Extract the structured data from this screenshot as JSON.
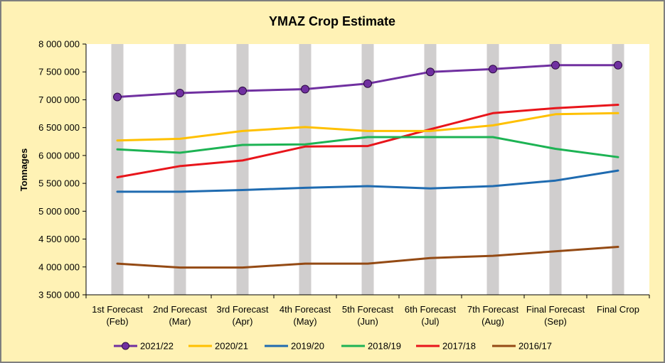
{
  "chart_data": {
    "type": "line",
    "title": "YMAZ Crop Estimate",
    "ylabel": "Tonnages",
    "ylim": [
      3500000,
      8000000
    ],
    "yticks": [
      3500000,
      4000000,
      4500000,
      5000000,
      5500000,
      6000000,
      6500000,
      7000000,
      7500000,
      8000000
    ],
    "ytick_labels": [
      "3 500 000",
      "4 000 000",
      "4 500 000",
      "5 000 000",
      "5 500 000",
      "6 000 000",
      "6 500 000",
      "7 000 000",
      "7 500 000",
      "8 000 000"
    ],
    "categories": [
      [
        "1st Forecast",
        "(Feb)"
      ],
      [
        "2nd Forecast",
        "(Mar)"
      ],
      [
        "3rd Forecast",
        "(Apr)"
      ],
      [
        "4th Forecast",
        "(May)"
      ],
      [
        "5th Forecast",
        "(Jun)"
      ],
      [
        "6th Forecast",
        "(Jul)"
      ],
      [
        "7th Forecast",
        "(Aug)"
      ],
      [
        "Final Forecast",
        "(Sep)"
      ],
      [
        "Final Crop",
        ""
      ]
    ],
    "grid": false,
    "legend_position": "bottom",
    "series": [
      {
        "name": "2021/22",
        "color": "#7030A0",
        "marker": true,
        "values": [
          7050000,
          7120000,
          7160000,
          7190000,
          7290000,
          7500000,
          7550000,
          7620000,
          7620000
        ]
      },
      {
        "name": "2020/21",
        "color": "#FFC000",
        "marker": false,
        "values": [
          6270000,
          6300000,
          6440000,
          6510000,
          6440000,
          6440000,
          6540000,
          6740000,
          6760000
        ]
      },
      {
        "name": "2019/20",
        "color": "#1F6BB0",
        "marker": false,
        "values": [
          5350000,
          5350000,
          5380000,
          5420000,
          5450000,
          5410000,
          5450000,
          5550000,
          5730000
        ]
      },
      {
        "name": "2018/19",
        "color": "#1DB354",
        "marker": false,
        "values": [
          6110000,
          6050000,
          6190000,
          6200000,
          6330000,
          6330000,
          6330000,
          6120000,
          5970000
        ]
      },
      {
        "name": "2017/18",
        "color": "#E8151B",
        "marker": false,
        "values": [
          5610000,
          5810000,
          5910000,
          6160000,
          6170000,
          6470000,
          6760000,
          6850000,
          6910000
        ]
      },
      {
        "name": "2016/17",
        "color": "#944A14",
        "marker": false,
        "values": [
          4060000,
          3990000,
          3990000,
          4060000,
          4060000,
          4160000,
          4200000,
          4280000,
          4360000
        ]
      }
    ],
    "colors": {
      "background": "#FFF2B5",
      "plot_background": "#FFFFFF",
      "category_band": "#D0CECE",
      "frame": "#7F7F7F"
    }
  }
}
